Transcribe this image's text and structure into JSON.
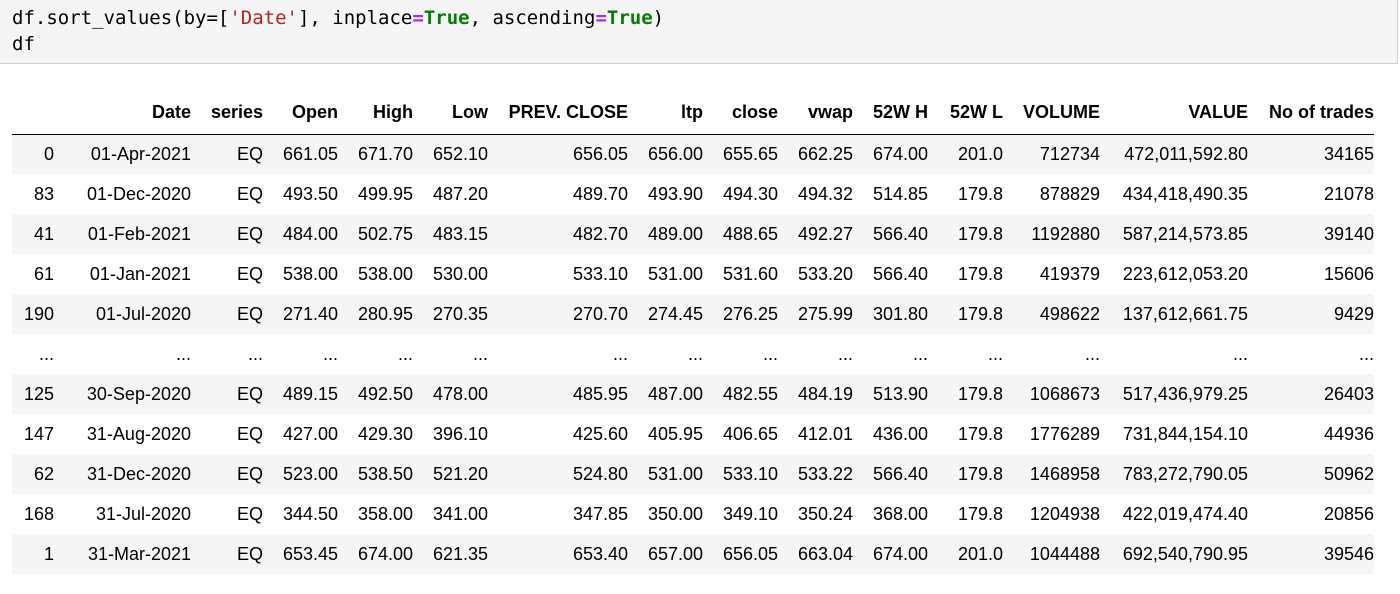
{
  "code": {
    "line1_prefix": "df.sort_values(by=[",
    "line1_str": "'Date'",
    "line1_mid1": "], inplace",
    "line1_eq1": "=",
    "line1_kw1": "True",
    "line1_mid2": ", ascending",
    "line1_eq2": "=",
    "line1_kw2": "True",
    "line1_suffix": ")",
    "line2": "df"
  },
  "table": {
    "columns": [
      "",
      "Date",
      "series",
      "Open",
      "High",
      "Low",
      "PREV. CLOSE",
      "ltp",
      "close",
      "vwap",
      "52W H",
      "52W L",
      "VOLUME",
      "VALUE",
      "No of trades"
    ],
    "rows": [
      [
        "0",
        "01-Apr-2021",
        "EQ",
        "661.05",
        "671.70",
        "652.10",
        "656.05",
        "656.00",
        "655.65",
        "662.25",
        "674.00",
        "201.0",
        "712734",
        "472,011,592.80",
        "34165"
      ],
      [
        "83",
        "01-Dec-2020",
        "EQ",
        "493.50",
        "499.95",
        "487.20",
        "489.70",
        "493.90",
        "494.30",
        "494.32",
        "514.85",
        "179.8",
        "878829",
        "434,418,490.35",
        "21078"
      ],
      [
        "41",
        "01-Feb-2021",
        "EQ",
        "484.00",
        "502.75",
        "483.15",
        "482.70",
        "489.00",
        "488.65",
        "492.27",
        "566.40",
        "179.8",
        "1192880",
        "587,214,573.85",
        "39140"
      ],
      [
        "61",
        "01-Jan-2021",
        "EQ",
        "538.00",
        "538.00",
        "530.00",
        "533.10",
        "531.00",
        "531.60",
        "533.20",
        "566.40",
        "179.8",
        "419379",
        "223,612,053.20",
        "15606"
      ],
      [
        "190",
        "01-Jul-2020",
        "EQ",
        "271.40",
        "280.95",
        "270.35",
        "270.70",
        "274.45",
        "276.25",
        "275.99",
        "301.80",
        "179.8",
        "498622",
        "137,612,661.75",
        "9429"
      ],
      [
        "...",
        "...",
        "...",
        "...",
        "...",
        "...",
        "...",
        "...",
        "...",
        "...",
        "...",
        "...",
        "...",
        "...",
        "..."
      ],
      [
        "125",
        "30-Sep-2020",
        "EQ",
        "489.15",
        "492.50",
        "478.00",
        "485.95",
        "487.00",
        "482.55",
        "484.19",
        "513.90",
        "179.8",
        "1068673",
        "517,436,979.25",
        "26403"
      ],
      [
        "147",
        "31-Aug-2020",
        "EQ",
        "427.00",
        "429.30",
        "396.10",
        "425.60",
        "405.95",
        "406.65",
        "412.01",
        "436.00",
        "179.8",
        "1776289",
        "731,844,154.10",
        "44936"
      ],
      [
        "62",
        "31-Dec-2020",
        "EQ",
        "523.00",
        "538.50",
        "521.20",
        "524.80",
        "531.00",
        "533.10",
        "533.22",
        "566.40",
        "179.8",
        "1468958",
        "783,272,790.05",
        "50962"
      ],
      [
        "168",
        "31-Jul-2020",
        "EQ",
        "344.50",
        "358.00",
        "341.00",
        "347.85",
        "350.00",
        "349.10",
        "350.24",
        "368.00",
        "179.8",
        "1204938",
        "422,019,474.40",
        "20856"
      ],
      [
        "1",
        "31-Mar-2021",
        "EQ",
        "653.45",
        "674.00",
        "621.35",
        "653.40",
        "657.00",
        "656.05",
        "663.04",
        "674.00",
        "201.0",
        "1044488",
        "692,540,790.95",
        "39546"
      ]
    ]
  }
}
